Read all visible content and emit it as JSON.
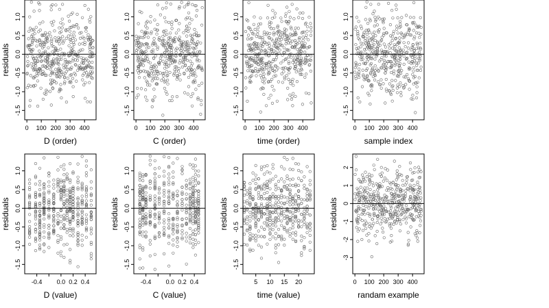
{
  "figure": {
    "layout": "2 rows x 4 panels",
    "point_color": "#666666",
    "frame_color": "#000000"
  },
  "chart_data": [
    {
      "type": "scatter",
      "xlabel": "D (order)",
      "ylabel": "residuals",
      "xlim": [
        -15,
        480
      ],
      "ylim": [
        -1.75,
        1.45
      ],
      "xticks": [
        0,
        100,
        200,
        300,
        400
      ],
      "xtick_labels": [
        "0",
        "100",
        "200",
        "300",
        "400"
      ],
      "yticks": [
        -1.5,
        -1.0,
        -0.5,
        0.0,
        0.5,
        1.0
      ],
      "ytick_labels": [
        "-1.5",
        "-1.0",
        "-0.5",
        "0.0",
        "0.5",
        "1.0"
      ],
      "hline": 0,
      "points": {
        "n": 460,
        "x_range": [
          0,
          460
        ],
        "y_spread": 0.55,
        "seed": 11
      }
    },
    {
      "type": "scatter",
      "xlabel": "C (order)",
      "ylabel": "residuals",
      "xlim": [
        -15,
        480
      ],
      "ylim": [
        -1.75,
        1.45
      ],
      "xticks": [
        0,
        100,
        200,
        300,
        400
      ],
      "xtick_labels": [
        "0",
        "100",
        "200",
        "300",
        "400"
      ],
      "yticks": [
        -1.5,
        -1.0,
        -0.5,
        0.0,
        0.5,
        1.0
      ],
      "ytick_labels": [
        "-1.5",
        "-1.0",
        "-0.5",
        "0.0",
        "0.5",
        "1.0"
      ],
      "hline": 0,
      "points": {
        "n": 460,
        "x_range": [
          0,
          460
        ],
        "y_spread": 0.55,
        "seed": 23
      }
    },
    {
      "type": "scatter",
      "xlabel": "time (order)",
      "ylabel": "residuals",
      "xlim": [
        -15,
        480
      ],
      "ylim": [
        -1.75,
        1.45
      ],
      "xticks": [
        0,
        100,
        200,
        300,
        400
      ],
      "xtick_labels": [
        "0",
        "100",
        "200",
        "300",
        "400"
      ],
      "yticks": [
        -1.5,
        -1.0,
        -0.5,
        0.0,
        0.5,
        1.0
      ],
      "ytick_labels": [
        "-1.5",
        "-1.0",
        "-0.5",
        "0.0",
        "0.5",
        "1.0"
      ],
      "hline": 0,
      "points": {
        "n": 460,
        "x_range": [
          0,
          460
        ],
        "y_spread": 0.55,
        "seed": 37
      }
    },
    {
      "type": "scatter",
      "xlabel": "sample index",
      "ylabel": "residuals",
      "xlim": [
        -15,
        480
      ],
      "ylim": [
        -1.75,
        1.45
      ],
      "xticks": [
        0,
        100,
        200,
        300,
        400
      ],
      "xtick_labels": [
        "0",
        "100",
        "200",
        "300",
        "400"
      ],
      "yticks": [
        -1.5,
        -1.0,
        -0.5,
        0.0,
        0.5,
        1.0
      ],
      "ytick_labels": [
        "-1.5",
        "-1.0",
        "-0.5",
        "0.0",
        "0.5",
        "1.0"
      ],
      "hline": 0,
      "points": {
        "n": 460,
        "x_range": [
          0,
          460
        ],
        "y_spread": 0.55,
        "seed": 41
      }
    },
    {
      "type": "scatter",
      "xlabel": "D (value)",
      "ylabel": "residuals",
      "xlim": [
        -0.6,
        0.58
      ],
      "ylim": [
        -1.75,
        1.45
      ],
      "xticks": [
        -0.4,
        -0.2,
        0.0,
        0.2,
        0.4
      ],
      "xtick_labels": [
        "-0.4",
        "",
        "0.0",
        "0.2",
        "0.4"
      ],
      "yticks": [
        -1.5,
        -1.0,
        -0.5,
        0.0,
        0.5,
        1.0
      ],
      "ytick_labels": [
        "-1.5",
        "-1.0",
        "-0.5",
        "0.0",
        "0.5",
        "1.0"
      ],
      "hline": 0,
      "points": {
        "n": 460,
        "x_levels": [
          -0.52,
          -0.42,
          -0.35,
          -0.28,
          -0.2,
          -0.12,
          -0.05,
          0.0,
          0.05,
          0.1,
          0.15,
          0.2,
          0.28,
          0.35,
          0.42,
          0.5
        ],
        "y_spread": 0.55,
        "seed": 53
      }
    },
    {
      "type": "scatter",
      "xlabel": "C (value)",
      "ylabel": "residuals",
      "xlim": [
        -0.6,
        0.58
      ],
      "ylim": [
        -1.75,
        1.45
      ],
      "xticks": [
        -0.4,
        -0.2,
        0.0,
        0.2,
        0.4
      ],
      "xtick_labels": [
        "-0.4",
        "",
        "0.0",
        "0.2",
        "0.4"
      ],
      "yticks": [
        -1.5,
        -1.0,
        -0.5,
        0.0,
        0.5,
        1.0
      ],
      "ytick_labels": [
        "-1.5",
        "-1.0",
        "-0.5",
        "0.0",
        "0.5",
        "1.0"
      ],
      "hline": 0,
      "points": {
        "n": 460,
        "x_levels": [
          -0.5,
          -0.45,
          -0.4,
          -0.33,
          -0.25,
          -0.18,
          -0.1,
          -0.02,
          0.05,
          0.12,
          0.2,
          0.27,
          0.33,
          0.38,
          0.42,
          0.47
        ],
        "y_spread": 0.55,
        "seed": 67
      }
    },
    {
      "type": "scatter",
      "xlabel": "time (value)",
      "ylabel": "residuals",
      "xlim": [
        0.5,
        25.5
      ],
      "ylim": [
        -1.75,
        1.45
      ],
      "xticks": [
        5,
        10,
        15,
        20
      ],
      "xtick_labels": [
        "5",
        "10",
        "15",
        "20"
      ],
      "yticks": [
        -1.5,
        -1.0,
        -0.5,
        0.0,
        0.5,
        1.0
      ],
      "ytick_labels": [
        "-1.5",
        "-1.0",
        "-0.5",
        "0.0",
        "0.5",
        "1.0"
      ],
      "hline": 0,
      "points": {
        "n": 460,
        "x_levels": [
          1,
          2,
          3,
          4,
          5,
          6,
          7,
          8,
          9,
          10,
          11,
          12,
          13,
          14,
          15,
          16,
          17,
          18,
          19,
          20,
          21,
          22,
          23,
          24
        ],
        "y_spread": 0.55,
        "seed": 79
      }
    },
    {
      "type": "scatter",
      "xlabel": "randam example",
      "ylabel": "residuals",
      "xlim": [
        -15,
        480
      ],
      "ylim": [
        -3.9,
        2.75
      ],
      "xticks": [
        0,
        100,
        200,
        300,
        400
      ],
      "xtick_labels": [
        "0",
        "100",
        "200",
        "300",
        "400"
      ],
      "yticks": [
        -3,
        -2,
        -1,
        0,
        1,
        2
      ],
      "ytick_labels": [
        "-3",
        "-2",
        "-1",
        "0",
        "1",
        "2"
      ],
      "hline": 0,
      "points": {
        "n": 460,
        "x_range": [
          0,
          460
        ],
        "y_spread": 1.0,
        "seed": 97
      }
    }
  ]
}
